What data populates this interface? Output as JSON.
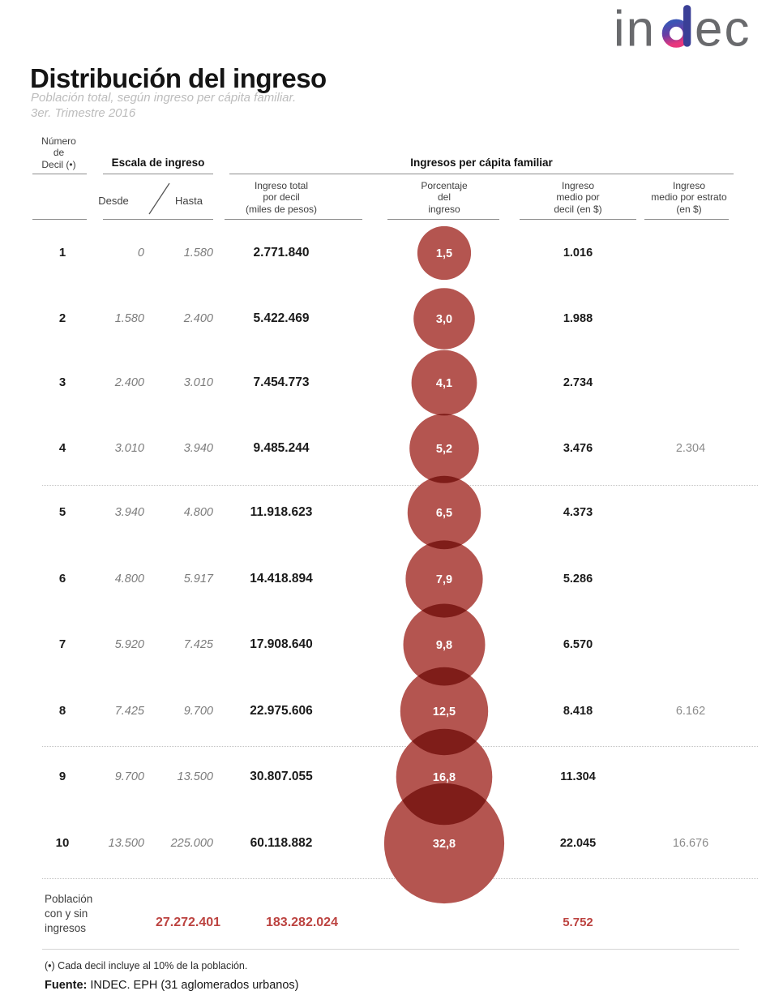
{
  "colors": {
    "bubble_fill": "#b45550",
    "bubble_overlap": "#7f1c19",
    "accent_red": "#bc4340",
    "logo_gray": "#696a6d"
  },
  "logo": {
    "text_in": "in",
    "text_ec": "ec",
    "full_text": "indec"
  },
  "header": {
    "title": "Distribución del ingreso",
    "subtitle": "Población total, según ingreso per cápita familiar.\n3er. Trimestre 2016"
  },
  "table_headers": {
    "decil": "Número\nde\nDecil (•)",
    "escala_group": "Escala de ingreso",
    "desde": "Desde",
    "hasta": "Hasta",
    "ipcf_group": "Ingresos per cápita familiar",
    "ingreso_total": "Ingreso total\npor decil\n(miles de pesos)",
    "porcentaje": "Porcentaje\ndel\ningreso",
    "ingreso_medio_decil": "Ingreso\nmedio por\ndecil (en $)",
    "ingreso_medio_estrato": "Ingreso\nmedio por estrato\n(en $)"
  },
  "chart_data": {
    "type": "table",
    "title": "Distribución del ingreso",
    "subtitle": "Población total, según ingreso per cápita familiar. 3er. Trimestre 2016",
    "bubble_column": "Porcentaje del ingreso",
    "columns": [
      "Número de Decil (•)",
      "Desde",
      "Hasta",
      "Ingreso total por decil (miles de pesos)",
      "Porcentaje del ingreso",
      "Ingreso medio por decil (en $)",
      "Ingreso medio por estrato (en $)"
    ],
    "rows": [
      {
        "decil": "1",
        "desde": "0",
        "hasta": "1.580",
        "ingreso_total": "2.771.840",
        "porcentaje_label": "1,5",
        "porcentaje_value": 1.5,
        "ingreso_medio_decil": "1.016",
        "ingreso_medio_estrato": ""
      },
      {
        "decil": "2",
        "desde": "1.580",
        "hasta": "2.400",
        "ingreso_total": "5.422.469",
        "porcentaje_label": "3,0",
        "porcentaje_value": 3.0,
        "ingreso_medio_decil": "1.988",
        "ingreso_medio_estrato": ""
      },
      {
        "decil": "3",
        "desde": "2.400",
        "hasta": "3.010",
        "ingreso_total": "7.454.773",
        "porcentaje_label": "4,1",
        "porcentaje_value": 4.1,
        "ingreso_medio_decil": "2.734",
        "ingreso_medio_estrato": ""
      },
      {
        "decil": "4",
        "desde": "3.010",
        "hasta": "3.940",
        "ingreso_total": "9.485.244",
        "porcentaje_label": "5,2",
        "porcentaje_value": 5.2,
        "ingreso_medio_decil": "3.476",
        "ingreso_medio_estrato": "2.304"
      },
      {
        "decil": "5",
        "desde": "3.940",
        "hasta": "4.800",
        "ingreso_total": "11.918.623",
        "porcentaje_label": "6,5",
        "porcentaje_value": 6.5,
        "ingreso_medio_decil": "4.373",
        "ingreso_medio_estrato": ""
      },
      {
        "decil": "6",
        "desde": "4.800",
        "hasta": "5.917",
        "ingreso_total": "14.418.894",
        "porcentaje_label": "7,9",
        "porcentaje_value": 7.9,
        "ingreso_medio_decil": "5.286",
        "ingreso_medio_estrato": ""
      },
      {
        "decil": "7",
        "desde": "5.920",
        "hasta": "7.425",
        "ingreso_total": "17.908.640",
        "porcentaje_label": "9,8",
        "porcentaje_value": 9.8,
        "ingreso_medio_decil": "6.570",
        "ingreso_medio_estrato": ""
      },
      {
        "decil": "8",
        "desde": "7.425",
        "hasta": "9.700",
        "ingreso_total": "22.975.606",
        "porcentaje_label": "12,5",
        "porcentaje_value": 12.5,
        "ingreso_medio_decil": "8.418",
        "ingreso_medio_estrato": "6.162"
      },
      {
        "decil": "9",
        "desde": "9.700",
        "hasta": "13.500",
        "ingreso_total": "30.807.055",
        "porcentaje_label": "16,8",
        "porcentaje_value": 16.8,
        "ingreso_medio_decil": "11.304",
        "ingreso_medio_estrato": ""
      },
      {
        "decil": "10",
        "desde": "13.500",
        "hasta": "225.000",
        "ingreso_total": "60.118.882",
        "porcentaje_label": "32,8",
        "porcentaje_value": 32.8,
        "ingreso_medio_decil": "22.045",
        "ingreso_medio_estrato": "16.676"
      }
    ],
    "footer_row": {
      "label": "Población\ncon y sin\ningresos",
      "escala_value": "27.272.401",
      "ingreso_total": "183.282.024",
      "ingreso_medio_decil": "5.752"
    }
  },
  "footnotes": {
    "note": "(•) Cada decil incluye al 10% de la población.",
    "fuente_label": "Fuente:",
    "fuente_text": " INDEC. EPH (31 aglomerados urbanos)"
  }
}
